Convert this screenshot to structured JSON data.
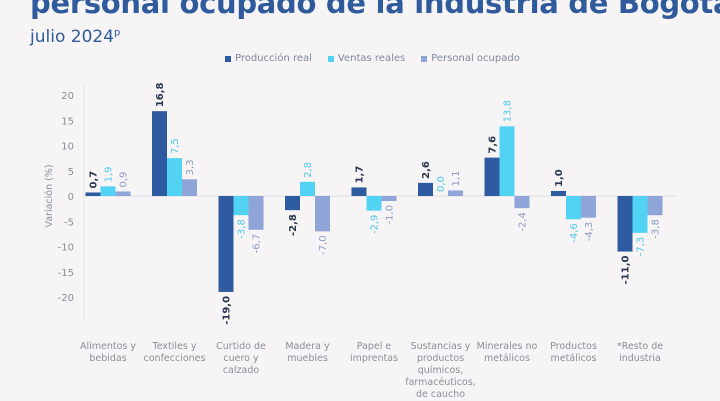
{
  "header": {
    "title": "personal ocupado de la industria de Bogotá",
    "subtitle": "julio 2024",
    "subtitle_sup": "p"
  },
  "chart_data": {
    "type": "bar",
    "ylabel": "Variación (%)",
    "ylim": [
      -25,
      22
    ],
    "yticks": [
      20,
      15,
      10,
      5,
      0,
      -5,
      -10,
      -15,
      -20
    ],
    "categories": [
      "Alimentos y bebidas",
      "Textiles y confecciones",
      "Curtido de cuero y calzado",
      "Madera y muebles",
      "Papel e imprentas",
      "Sustancias y productos químicos, farmacéuticos, de caucho",
      "Minerales no metálicos",
      "Productos metálicos",
      "*Resto de industria"
    ],
    "legend_position": "top",
    "series": [
      {
        "name": "Producción real",
        "color": "#2e5aa0",
        "label_color": "#2b3650",
        "values": [
          0.7,
          16.8,
          -19.0,
          -2.8,
          1.7,
          2.6,
          7.6,
          1.0,
          -11.0
        ]
      },
      {
        "name": "Ventas reales",
        "color": "#52d3f4",
        "label_color": "#4cc9ec",
        "values": [
          1.9,
          7.5,
          -3.8,
          2.8,
          -2.9,
          0.0,
          13.8,
          -4.6,
          -7.3
        ]
      },
      {
        "name": "Personal ocupado",
        "color": "#8fa5d8",
        "label_color": "#8c9cc4",
        "values": [
          0.9,
          3.3,
          -6.7,
          -7.0,
          -1.0,
          1.1,
          -2.4,
          -4.3,
          -3.8
        ]
      }
    ]
  }
}
